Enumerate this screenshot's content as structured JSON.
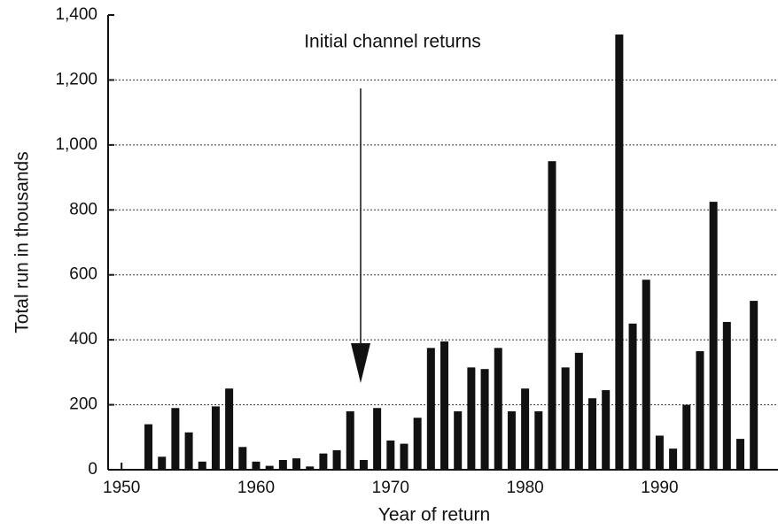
{
  "chart_data": {
    "type": "bar",
    "annotation": "Initial channel returns",
    "y_label": "Total run in thousands",
    "x_label": "Year of return",
    "color": "#111111",
    "grid": true,
    "x": [
      1952,
      1953,
      1954,
      1955,
      1956,
      1957,
      1958,
      1959,
      1960,
      1961,
      1962,
      1963,
      1964,
      1965,
      1966,
      1967,
      1968,
      1969,
      1970,
      1971,
      1972,
      1973,
      1974,
      1975,
      1976,
      1977,
      1978,
      1979,
      1980,
      1981,
      1982,
      1983,
      1984,
      1985,
      1986,
      1987,
      1988,
      1989,
      1990,
      1991,
      1992,
      1993,
      1994,
      1995,
      1996,
      1997
    ],
    "values": [
      140,
      40,
      190,
      115,
      25,
      195,
      250,
      70,
      25,
      12,
      30,
      35,
      10,
      50,
      60,
      180,
      30,
      190,
      90,
      80,
      160,
      375,
      395,
      180,
      315,
      310,
      375,
      180,
      250,
      180,
      950,
      315,
      360,
      220,
      245,
      1340,
      450,
      585,
      105,
      65,
      200,
      365,
      825,
      455,
      95,
      520
    ],
    "xlim": [
      1949,
      1998.8
    ],
    "xticks": [
      1950,
      1960,
      1970,
      1980,
      1990
    ],
    "ylim": [
      0,
      1400
    ],
    "yticks": [
      0,
      200,
      400,
      600,
      800,
      {
        "value": 1000,
        "label": "1,000"
      },
      {
        "value": 1200,
        "label": "1,200"
      },
      {
        "value": 1400,
        "label": "1,400"
      }
    ]
  }
}
